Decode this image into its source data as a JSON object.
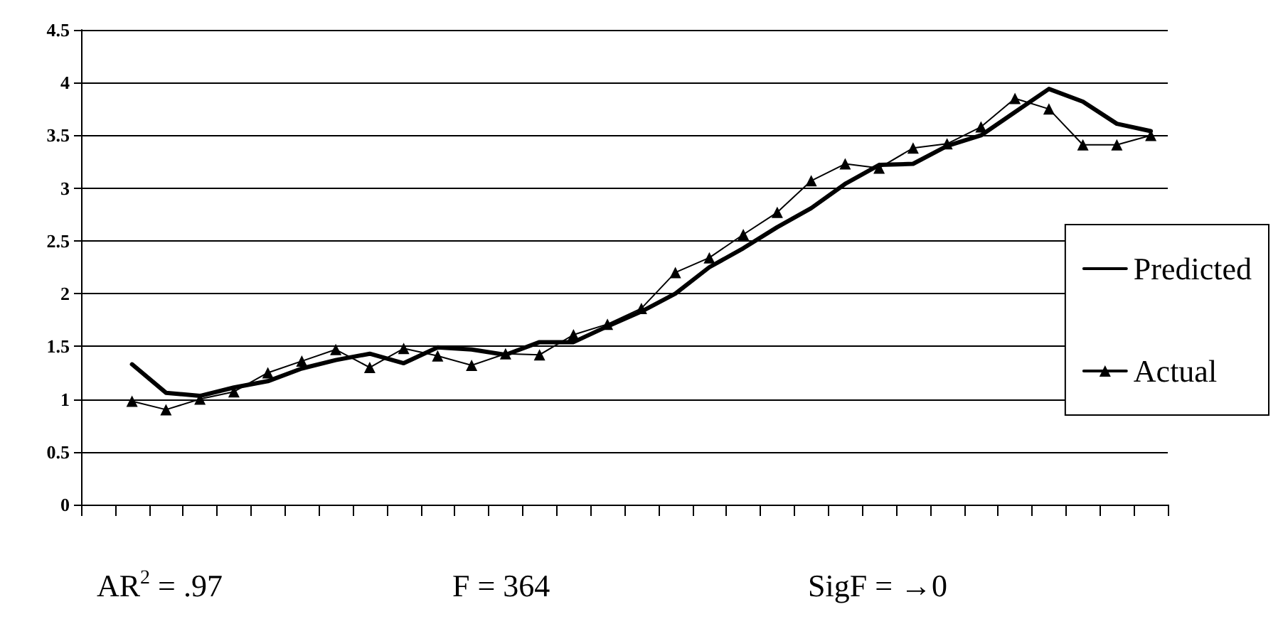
{
  "chart_data": {
    "type": "line",
    "categories": [
      null,
      null,
      null,
      null,
      null,
      null,
      null,
      null,
      null,
      null,
      null,
      null,
      null,
      null,
      null,
      null,
      null,
      null,
      null,
      null,
      null,
      null,
      null,
      null,
      null,
      null,
      null,
      null,
      null,
      null,
      null,
      null
    ],
    "series": [
      {
        "name": "Predicted",
        "color": "#000000",
        "marker": "none",
        "values": [
          null,
          1.33,
          1.06,
          1.03,
          1.11,
          1.17,
          1.29,
          1.37,
          1.43,
          1.34,
          1.49,
          1.47,
          1.42,
          1.54,
          1.54,
          1.69,
          1.83,
          2.0,
          2.25,
          2.43,
          2.63,
          2.81,
          3.04,
          3.22,
          3.23,
          3.4,
          3.5,
          3.72,
          3.94,
          3.82,
          3.61,
          3.54
        ]
      },
      {
        "name": "Actual",
        "color": "#000000",
        "marker": "triangle",
        "values": [
          null,
          0.98,
          0.9,
          1.0,
          1.07,
          1.25,
          1.36,
          1.47,
          1.3,
          1.48,
          1.41,
          1.32,
          1.43,
          1.42,
          1.61,
          1.71,
          1.86,
          2.2,
          2.34,
          2.56,
          2.77,
          3.07,
          3.23,
          3.19,
          3.38,
          3.42,
          3.58,
          3.85,
          3.75,
          3.41,
          3.41,
          3.5
        ]
      }
    ],
    "ylim": [
      0,
      4.5
    ],
    "yticks": [
      0,
      0.5,
      1,
      1.5,
      2,
      2.5,
      3,
      3.5,
      4,
      4.5
    ],
    "grid": "y",
    "legend": "right",
    "tick_labels": "y",
    "line_style": "solid",
    "annotations": [
      "AR$^{2}$ = .97",
      "F = 364",
      "SigF = →0"
    ]
  }
}
